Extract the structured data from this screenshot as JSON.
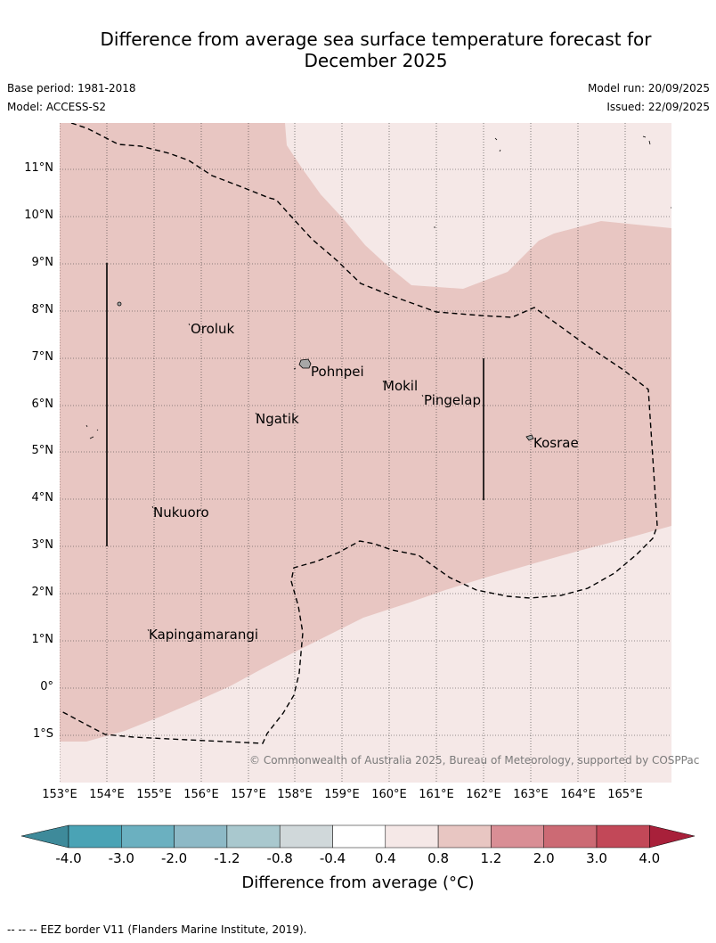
{
  "title_line1": "Difference from average sea surface temperature forecast for",
  "title_line2": "December 2025",
  "base_period": "Base period: 1981-2018",
  "model": "Model: ACCESS-S2",
  "model_run": "Model run: 20/09/2025",
  "issued": "Issued: 22/09/2025",
  "lat_labels": [
    "11°N",
    "10°N",
    "9°N",
    "8°N",
    "7°N",
    "6°N",
    "5°N",
    "4°N",
    "3°N",
    "2°N",
    "1°N",
    "0°",
    "1°S"
  ],
  "lon_labels": [
    "153°E",
    "154°E",
    "155°E",
    "156°E",
    "157°E",
    "158°E",
    "159°E",
    "160°E",
    "161°E",
    "162°E",
    "163°E",
    "164°E",
    "165°E"
  ],
  "places": {
    "oroluk": "Oroluk",
    "pohnpei": "Pohnpei",
    "mokil": "Mokil",
    "pingelap": "Pingelap",
    "ngatik": "Ngatik",
    "kosrae": "Kosrae",
    "nukuoro": "Nukuoro",
    "kapingamarangi": "Kapingamarangi"
  },
  "copyright": "© Commonwealth of Australia 2025, Bureau of Meteorology, supported by COSPPac",
  "colorbar": {
    "ticks": [
      "-4.0",
      "-3.0",
      "-2.0",
      "-1.2",
      "-0.8",
      "-0.4",
      "0.4",
      "0.8",
      "1.2",
      "2.0",
      "3.0",
      "4.0"
    ],
    "label": "Difference from average (°C)",
    "colors": [
      "#3e8a9a",
      "#4aa3b5",
      "#6bb0c0",
      "#8db9c6",
      "#a9c8ce",
      "#d0d8da",
      "#ffffff",
      "#f5e8e7",
      "#e8c6c2",
      "#d98e95",
      "#cc6a74",
      "#c24858",
      "#a8203a"
    ]
  },
  "legend_palette": {
    "anomaly_0_4_to_0_8": "#f5e8e7",
    "anomaly_0_8_to_1_2": "#e8c6c2"
  },
  "footer": "-- -- -- EEZ border V11 (Flanders Marine Institute, 2019)."
}
